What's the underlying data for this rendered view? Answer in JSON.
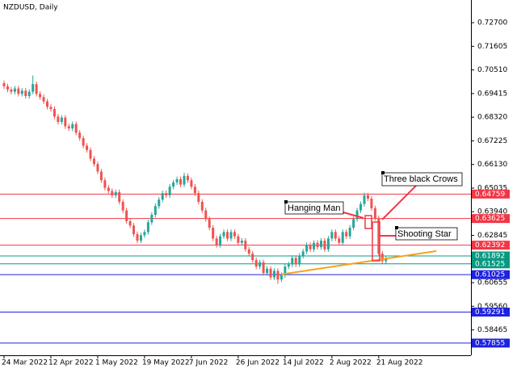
{
  "chart_data": {
    "type": "candlestick",
    "title": "NZDUSD, Daily",
    "categories": [
      "24 Mar 2022",
      null,
      null,
      null,
      null,
      null,
      null,
      null,
      null,
      null,
      null,
      null,
      null,
      "12 Apr 2022",
      null,
      null,
      null,
      null,
      null,
      null,
      null,
      null,
      null,
      null,
      null,
      null,
      "1 May 2022",
      null,
      null,
      null,
      null,
      null,
      null,
      null,
      null,
      null,
      null,
      null,
      null,
      "19 May 2022",
      null,
      null,
      null,
      null,
      null,
      null,
      null,
      null,
      null,
      null,
      null,
      null,
      "7 Jun 2022",
      null,
      null,
      null,
      null,
      null,
      null,
      null,
      null,
      null,
      null,
      null,
      null,
      "26 Jun 2022",
      null,
      null,
      null,
      null,
      null,
      null,
      null,
      null,
      null,
      null,
      null,
      null,
      "14 Jul 2022",
      null,
      null,
      null,
      null,
      null,
      null,
      null,
      null,
      null,
      null,
      null,
      null,
      "2 Aug 2022",
      null,
      null,
      null,
      null,
      null,
      null,
      null,
      null,
      null,
      null,
      null,
      null,
      "21 Aug 2022",
      null,
      null
    ],
    "open": [
      0.699,
      0.6975,
      0.696,
      0.695,
      0.6965,
      0.694,
      0.6955,
      0.693,
      0.695,
      0.6985,
      0.694,
      0.6925,
      0.6905,
      0.688,
      0.687,
      0.6835,
      0.681,
      0.683,
      0.679,
      0.678,
      0.68,
      0.676,
      0.6735,
      0.67,
      0.668,
      0.664,
      0.6615,
      0.658,
      0.654,
      0.6505,
      0.649,
      0.647,
      0.6485,
      0.644,
      0.64,
      0.635,
      0.633,
      0.629,
      0.626,
      0.6285,
      0.63,
      0.6345,
      0.638,
      0.642,
      0.645,
      0.648,
      0.647,
      0.651,
      0.653,
      0.6545,
      0.652,
      0.656,
      0.654,
      0.651,
      0.648,
      0.644,
      0.64,
      0.636,
      0.632,
      0.627,
      0.624,
      0.628,
      0.63,
      0.627,
      0.63,
      0.628,
      0.625,
      0.626,
      0.622,
      0.62,
      0.617,
      0.614,
      0.616,
      0.611,
      0.613,
      0.609,
      0.612,
      0.608,
      0.61,
      0.614,
      0.615,
      0.618,
      0.615,
      0.619,
      0.621,
      0.624,
      0.622,
      0.625,
      0.623,
      0.626,
      0.622,
      0.627,
      0.63,
      0.627,
      0.625,
      0.63,
      0.628,
      0.632,
      0.636,
      0.64,
      0.643,
      0.647,
      0.6455,
      0.641,
      0.6365,
      0.62,
      0.6165
    ],
    "high": [
      0.7002,
      0.6987,
      0.6972,
      0.6977,
      0.6977,
      0.6967,
      0.6967,
      0.6962,
      0.7025,
      0.6997,
      0.6952,
      0.6937,
      0.6917,
      0.6892,
      0.6882,
      0.6847,
      0.6842,
      0.6842,
      0.6802,
      0.6812,
      0.6812,
      0.6772,
      0.6747,
      0.6712,
      0.6692,
      0.6652,
      0.6627,
      0.6592,
      0.6552,
      0.6517,
      0.6502,
      0.6497,
      0.6497,
      0.6452,
      0.6412,
      0.6362,
      0.6342,
      0.6302,
      0.6297,
      0.6312,
      0.6357,
      0.6392,
      0.6432,
      0.6462,
      0.6492,
      0.6492,
      0.6522,
      0.6542,
      0.6557,
      0.6557,
      0.6575,
      0.6572,
      0.6552,
      0.6522,
      0.6492,
      0.6452,
      0.6412,
      0.6372,
      0.6332,
      0.6282,
      0.6292,
      0.6312,
      0.6312,
      0.6312,
      0.6312,
      0.6292,
      0.6272,
      0.6272,
      0.6232,
      0.6212,
      0.6182,
      0.6172,
      0.6172,
      0.6142,
      0.6142,
      0.6132,
      0.6132,
      0.6112,
      0.6152,
      0.6162,
      0.6192,
      0.6192,
      0.6202,
      0.6222,
      0.6252,
      0.6252,
      0.6262,
      0.6262,
      0.6272,
      0.6272,
      0.6282,
      0.6312,
      0.6312,
      0.6282,
      0.6312,
      0.6312,
      0.6332,
      0.6372,
      0.6412,
      0.6442,
      0.6482,
      0.6482,
      0.6467,
      0.6422,
      0.6377,
      0.6212,
      0.6187
    ],
    "low": [
      0.6963,
      0.6948,
      0.6938,
      0.6938,
      0.6928,
      0.6928,
      0.6918,
      0.6918,
      0.6938,
      0.6928,
      0.6913,
      0.6893,
      0.6868,
      0.6858,
      0.6823,
      0.6798,
      0.6798,
      0.6778,
      0.6768,
      0.6768,
      0.6748,
      0.6723,
      0.6688,
      0.6668,
      0.6628,
      0.6603,
      0.6568,
      0.6528,
      0.6493,
      0.6478,
      0.6458,
      0.6458,
      0.6428,
      0.6388,
      0.6338,
      0.6318,
      0.6278,
      0.6248,
      0.6248,
      0.6273,
      0.6288,
      0.6333,
      0.6368,
      0.6408,
      0.6438,
      0.6458,
      0.6458,
      0.6498,
      0.6518,
      0.6508,
      0.6508,
      0.6528,
      0.6498,
      0.6468,
      0.6428,
      0.6388,
      0.6348,
      0.6308,
      0.6258,
      0.6228,
      0.6228,
      0.6268,
      0.6258,
      0.6258,
      0.6268,
      0.6238,
      0.6238,
      0.6208,
      0.6188,
      0.6158,
      0.6128,
      0.6128,
      0.6098,
      0.6098,
      0.6078,
      0.6078,
      0.606,
      0.6068,
      0.6088,
      0.6128,
      0.6138,
      0.6138,
      0.6138,
      0.6178,
      0.6198,
      0.6208,
      0.6208,
      0.6218,
      0.6218,
      0.6208,
      0.6208,
      0.6258,
      0.6258,
      0.6238,
      0.6238,
      0.6268,
      0.6268,
      0.6308,
      0.6348,
      0.6388,
      0.6418,
      0.6443,
      0.6398,
      0.6353,
      0.6188,
      0.6153,
      0.6153
    ],
    "close": [
      0.6975,
      0.696,
      0.695,
      0.6965,
      0.694,
      0.6955,
      0.693,
      0.695,
      0.6985,
      0.694,
      0.6925,
      0.6905,
      0.688,
      0.687,
      0.6835,
      0.681,
      0.683,
      0.679,
      0.678,
      0.68,
      0.676,
      0.6735,
      0.67,
      0.668,
      0.664,
      0.6615,
      0.658,
      0.654,
      0.6505,
      0.649,
      0.647,
      0.6485,
      0.644,
      0.64,
      0.635,
      0.633,
      0.629,
      0.626,
      0.6285,
      0.63,
      0.6345,
      0.638,
      0.642,
      0.645,
      0.648,
      0.647,
      0.651,
      0.653,
      0.6545,
      0.652,
      0.656,
      0.654,
      0.651,
      0.648,
      0.644,
      0.64,
      0.636,
      0.632,
      0.627,
      0.624,
      0.628,
      0.63,
      0.627,
      0.63,
      0.628,
      0.625,
      0.626,
      0.622,
      0.62,
      0.617,
      0.614,
      0.616,
      0.611,
      0.613,
      0.609,
      0.612,
      0.608,
      0.61,
      0.614,
      0.615,
      0.618,
      0.615,
      0.619,
      0.621,
      0.624,
      0.622,
      0.625,
      0.623,
      0.626,
      0.622,
      0.627,
      0.63,
      0.627,
      0.625,
      0.63,
      0.628,
      0.632,
      0.636,
      0.64,
      0.643,
      0.647,
      0.6455,
      0.641,
      0.6365,
      0.62,
      0.6165,
      0.6175
    ],
    "up_color": "#26a69a",
    "down_color": "#ef5350",
    "ylim": [
      0.5729,
      0.7375
    ],
    "yticks": [
      {
        "value": 0.727,
        "label": "0.72700"
      },
      0.71605,
      {
        "value": 0.7051,
        "label": "0.70510"
      },
      0.69415,
      {
        "value": 0.6832,
        "label": "0.68320"
      },
      0.67225,
      {
        "value": 0.6613,
        "label": "0.66130"
      },
      0.65035,
      {
        "value": 0.6394,
        "label": "0.63940"
      },
      0.62845,
      0.60655,
      {
        "value": 0.5956,
        "label": "0.59560"
      },
      0.58465
    ],
    "levels": [
      {
        "value": 0.64759,
        "color": "#f23645"
      },
      {
        "value": 0.63625,
        "color": "#f23645"
      },
      {
        "value": 0.62392,
        "color": "#f23645"
      },
      {
        "value": 0.61892,
        "color": "#089981"
      },
      {
        "value": 0.61525,
        "color": "#089981"
      },
      {
        "value": 0.61025,
        "color": "#1e22e0"
      },
      {
        "value": 0.59291,
        "color": "#1e22e0"
      },
      {
        "value": 0.57855,
        "color": "#1e22e0"
      }
    ],
    "trendline": {
      "x": [
        77,
        120
      ],
      "y": [
        0.6104,
        0.6212
      ],
      "color": "#f7a21b"
    },
    "annotations": [
      {
        "text": "Hanging Man"
      },
      {
        "text": "Three black Crows"
      },
      {
        "text": "Shooting Star"
      }
    ]
  }
}
